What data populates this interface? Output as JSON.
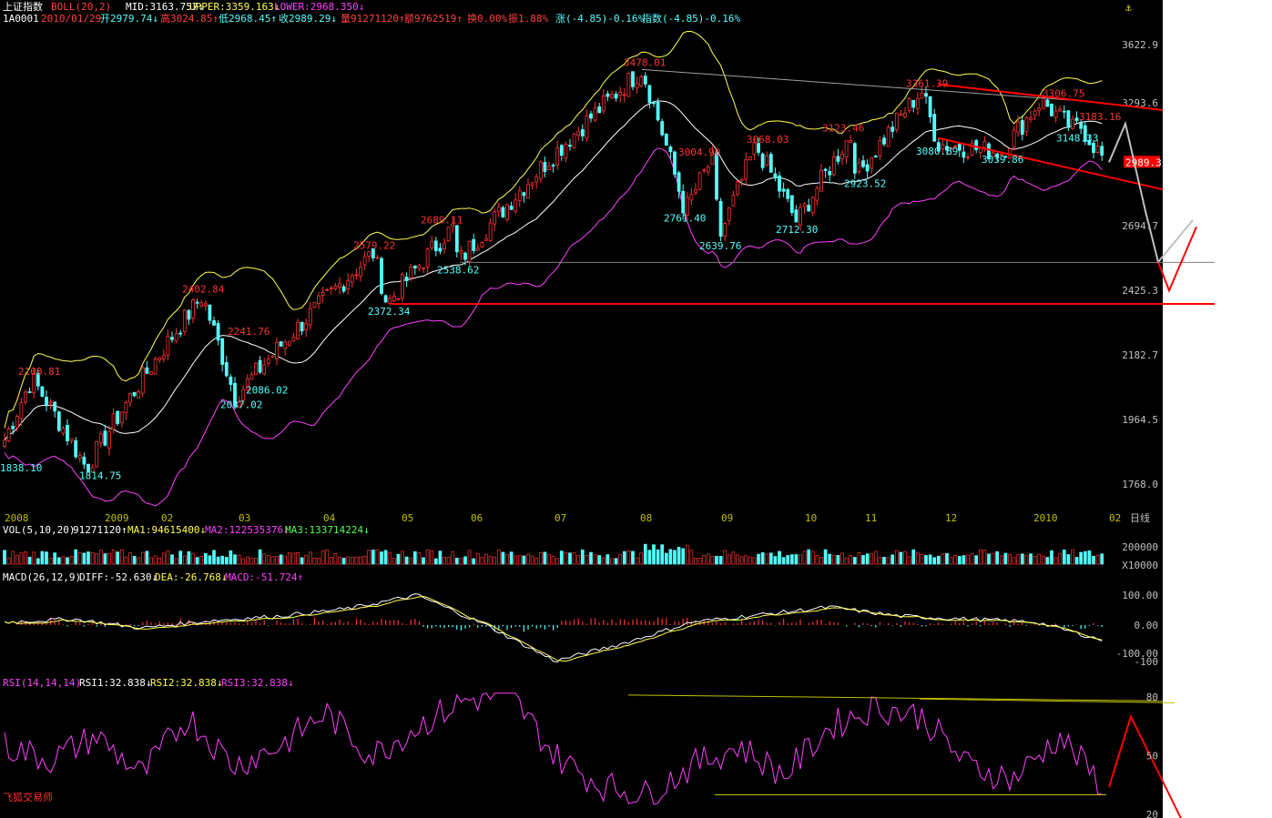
{
  "header": {
    "index_name": "上证指数",
    "boll_label": "BOLL(20,2)",
    "mid": "MID:3163.757↓",
    "upper": "UPPER:3359.163↓",
    "lower": "LOWER:2968.350↓",
    "anchor_icon": "anchor-icon"
  },
  "info_line": {
    "code": "1A0001",
    "date": "2010/01/29",
    "open": "开2979.74↓",
    "high": "高3024.85↑",
    "low": "低2968.45↑",
    "close": "收2989.29↓",
    "volume": "量91271120↑",
    "amount": "额9762519↑",
    "turnover": "换0.00%",
    "amplitude": "振1.88%",
    "change": "涨(-4.85)-0.16%",
    "index_change": "指数(-4.85)-0.16%"
  },
  "colors": {
    "background": "#000000",
    "up": "#ff3232",
    "down": "#54ffff",
    "boll_upper": "#ffff50",
    "boll_mid": "#ffffff",
    "boll_lower": "#ff40ff",
    "trend_red": "#ff0000",
    "arrow_grey": "#c0c0c0",
    "grid": "#808080"
  },
  "chart_data": [
    {
      "type": "candlestick",
      "title": "上证指数",
      "indicator": "BOLL(20,2)",
      "y_ticks": [
        3622.9,
        3293.6,
        2694.7,
        2425.3,
        2182.7,
        1964.5,
        1768.0
      ],
      "y_tick_labels": [
        "3622.9",
        "3293.6",
        "2694.7",
        "2425.3",
        "2182.7",
        "1964.5",
        "1768.0"
      ],
      "last_price_tag": "2989.3",
      "x_labels": [
        "2008",
        "2009",
        "02",
        "03",
        "04",
        "05",
        "06",
        "07",
        "08",
        "09",
        "10",
        "11",
        "12",
        "2010",
        "02",
        "日线"
      ],
      "annotations_high": [
        {
          "text": "2100.81",
          "value": 2100.81
        },
        {
          "text": "2402.84",
          "value": 2402.84
        },
        {
          "text": "2241.76",
          "value": 2241.76
        },
        {
          "text": "2579.22",
          "value": 2579.22
        },
        {
          "text": "2689.11",
          "value": 2689.11
        },
        {
          "text": "3478.01",
          "value": 3478.01
        },
        {
          "text": "3004.90",
          "value": 3004.9
        },
        {
          "text": "3068.03",
          "value": 3068.03
        },
        {
          "text": "3123.46",
          "value": 3123.46
        },
        {
          "text": "3361.39",
          "value": 3361.39
        },
        {
          "text": "3306.75",
          "value": 3306.75
        },
        {
          "text": "3183.16",
          "value": 3183.16
        }
      ],
      "annotations_low": [
        {
          "text": "1838.10",
          "value": 1838.1
        },
        {
          "text": "1814.75",
          "value": 1814.75
        },
        {
          "text": "2037.02",
          "value": 2037.02
        },
        {
          "text": "2086.02",
          "value": 2086.02
        },
        {
          "text": "2372.34",
          "value": 2372.34
        },
        {
          "text": "2538.62",
          "value": 2538.62
        },
        {
          "text": "2761.40",
          "value": 2761.4
        },
        {
          "text": "2639.76",
          "value": 2639.76
        },
        {
          "text": "2712.30",
          "value": 2712.3
        },
        {
          "text": "2923.52",
          "value": 2923.52
        },
        {
          "text": "3080.89",
          "value": 3080.89
        },
        {
          "text": "3039.86",
          "value": 3039.86
        },
        {
          "text": "3148.33",
          "value": 3148.33
        }
      ],
      "support_levels": [
        2538.62,
        2372.34
      ],
      "key_points": [
        {
          "label": "start",
          "value": 1900
        },
        {
          "label": "1814.75",
          "value": 1814.75
        },
        {
          "label": "2100.81",
          "value": 2100.81
        },
        {
          "label": "2402.84",
          "value": 2402.84
        },
        {
          "label": "2037.02",
          "value": 2037.02
        },
        {
          "label": "2579.22",
          "value": 2579.22
        },
        {
          "label": "2372.34",
          "value": 2372.34
        },
        {
          "label": "2689.11",
          "value": 2689.11
        },
        {
          "label": "2538.62",
          "value": 2538.62
        },
        {
          "label": "3478.01",
          "value": 3478.01
        },
        {
          "label": "2761.40",
          "value": 2761.4
        },
        {
          "label": "3004.90",
          "value": 3004.9
        },
        {
          "label": "2639.76",
          "value": 2639.76
        },
        {
          "label": "3068.03",
          "value": 3068.03
        },
        {
          "label": "2712.30",
          "value": 2712.3
        },
        {
          "label": "3123.46",
          "value": 3123.46
        },
        {
          "label": "2923.52",
          "value": 2923.52
        },
        {
          "label": "3361.39",
          "value": 3361.39
        },
        {
          "label": "3080.89",
          "value": 3080.89
        },
        {
          "label": "3306.75",
          "value": 3306.75
        },
        {
          "label": "3039.86",
          "value": 3039.86
        },
        {
          "label": "3183.16",
          "value": 3183.16
        },
        {
          "label": "3148.33",
          "value": 3148.33
        },
        {
          "label": "last",
          "value": 2989.29
        }
      ],
      "projection": [
        3183,
        2540,
        2425,
        2720
      ]
    },
    {
      "type": "bar",
      "title": "VOL(5,10,20)",
      "values_text": {
        "vol": "91271120↑",
        "ma1": "MA1:94615400↓",
        "ma2": "MA2:122535376↓",
        "ma3": "MA3:133714224↓"
      },
      "y_tick_labels": [
        "200000",
        "X10000"
      ]
    },
    {
      "type": "bar",
      "title": "MACD(26,12,9)",
      "values_text": {
        "diff": "DIFF:-52.630↓",
        "dea": "DEA:-26.768↓",
        "macd": "MACD:-51.724↑"
      },
      "y_tick_labels": [
        "100.00",
        "0.00",
        "-100.00",
        "-100"
      ],
      "diff_key": [
        10,
        20,
        -10,
        15,
        30,
        55,
        100,
        0,
        -120,
        -60,
        10,
        35,
        60,
        30,
        20,
        10,
        -52.63
      ]
    },
    {
      "type": "line",
      "title": "RSI(14,14,14)",
      "values_text": {
        "rsi1": "RSI1:32.838↓",
        "rsi2": "RSI2:32.838↓",
        "rsi3": "RSI3:32.838↓"
      },
      "y_ticks": [
        80,
        50,
        20
      ],
      "y_tick_labels": [
        "80",
        "50",
        "20"
      ],
      "key_points": [
        55,
        48,
        60,
        40,
        70,
        45,
        55,
        72,
        50,
        65,
        78,
        82,
        50,
        35,
        30,
        45,
        55,
        40,
        65,
        75,
        70,
        45,
        38,
        60,
        32.84
      ],
      "watermark": "飞狐交易师"
    }
  ]
}
